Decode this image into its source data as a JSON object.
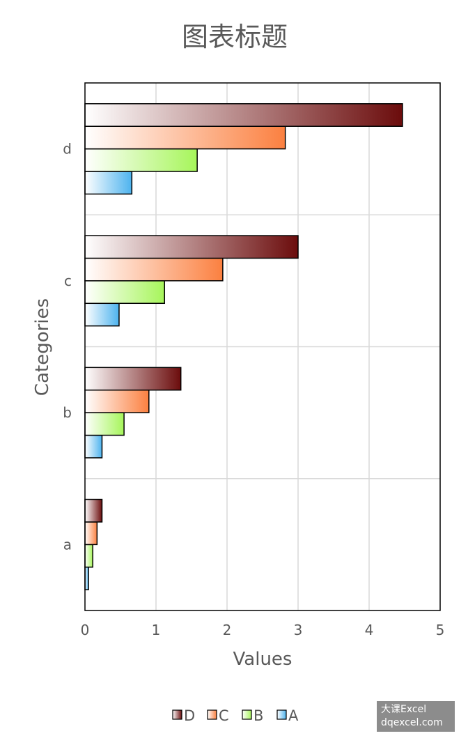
{
  "chart_data": {
    "type": "bar",
    "orientation": "horizontal",
    "title": "图表标题",
    "xlabel": "Values",
    "ylabel": "Categories",
    "categories": [
      "a",
      "b",
      "c",
      "d"
    ],
    "series": [
      {
        "name": "A",
        "values": [
          0.05,
          0.24,
          0.48,
          0.66
        ],
        "color": "#4db3ee"
      },
      {
        "name": "B",
        "values": [
          0.11,
          0.55,
          1.12,
          1.58
        ],
        "color": "#a6f55a"
      },
      {
        "name": "C",
        "values": [
          0.17,
          0.9,
          1.94,
          2.82
        ],
        "color": "#fb8040"
      },
      {
        "name": "D",
        "values": [
          0.24,
          1.35,
          3.0,
          4.47
        ],
        "color": "#6b0c0c"
      }
    ],
    "xlim": [
      0,
      5
    ],
    "xticks": [
      "0",
      "1",
      "2",
      "3",
      "4",
      "5"
    ],
    "grid": true,
    "legend_position": "bottom",
    "legend_order": [
      "D",
      "C",
      "B",
      "A"
    ]
  },
  "watermark": {
    "line1": "大课Excel",
    "line2": "dqexcel.com"
  }
}
